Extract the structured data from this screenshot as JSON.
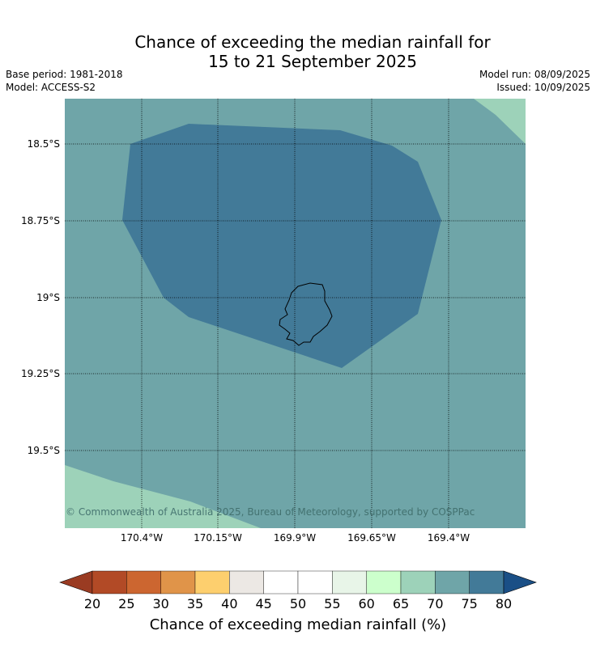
{
  "title_line1": "Chance of exceeding the median rainfall for",
  "title_line2": "15 to 21 September 2025",
  "base_period": "Base period: 1981-2018",
  "model": "Model: ACCESS-S2",
  "model_run": "Model run: 08/09/2025",
  "issued": "Issued: 10/09/2025",
  "lat_labels": [
    "18.5°S",
    "18.75°S",
    "19°S",
    "19.25°S",
    "19.5°S"
  ],
  "lon_labels": [
    "170.4°W",
    "170.15°W",
    "169.9°W",
    "169.65°W",
    "169.4°W"
  ],
  "copyright": "© Commonwealth of Australia 2025, Bureau of Meteorology, supported by COSPPac",
  "colorbar_ticks": [
    "20",
    "25",
    "30",
    "35",
    "40",
    "45",
    "50",
    "55",
    "60",
    "65",
    "70",
    "75",
    "80"
  ],
  "colorbar_colors": [
    "#b24a26",
    "#cc6630",
    "#e09449",
    "#fdcf6e",
    "#ece8e4",
    "#ffffff",
    "#ffffff",
    "#e8f5e8",
    "#ccffcc",
    "#9dd2b9",
    "#6fa5a8",
    "#427a98"
  ],
  "colorbar_under": "#9a3b22",
  "colorbar_over": "#1a4f86",
  "colorbar_title": "Chance of exceeding median rainfall (%)",
  "map_colors": {
    "base": "#6fa5a8",
    "high": "#427a98",
    "low": "#9dd2b9"
  }
}
